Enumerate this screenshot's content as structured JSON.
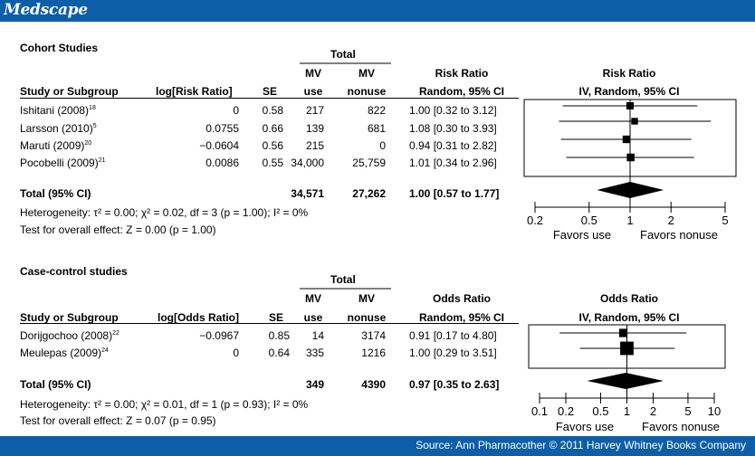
{
  "header": {
    "brand": "Medscape"
  },
  "footer": {
    "source": "Source: Ann Pharmacother © 2011 Harvey Whitney Books Company"
  },
  "chart_data": [
    {
      "type": "forest",
      "section_title": "Cohort Studies",
      "total_label": "Total",
      "columns": {
        "study": "Study or Subgroup",
        "logratio": "log[Risk Ratio]",
        "se": "SE",
        "use1": "MV",
        "use2": "use",
        "nonuse1": "MV",
        "nonuse2": "nonuse",
        "ratio1": "Risk Ratio",
        "ratio2": "Random, 95% CI",
        "plot1": "Risk Ratio",
        "plot2": "IV, Random, 95% CI"
      },
      "rows": [
        {
          "name": "Ishitani (2008)",
          "ref": "18",
          "logratio": "0",
          "se": "0.58",
          "use": "217",
          "nonuse": "822",
          "ci_text": "1.00 [0.32  to  3.12]",
          "est": 1.0,
          "low": 0.32,
          "high": 3.12,
          "weight": 0.22
        },
        {
          "name": "Larsson (2010)",
          "ref": "5",
          "logratio": "0.0755",
          "se": "0.66",
          "use": "139",
          "nonuse": "681",
          "ci_text": "1.08 [0.30  to  3.93]",
          "est": 1.08,
          "low": 0.3,
          "high": 3.93,
          "weight": 0.17
        },
        {
          "name": "Maruti (2009)",
          "ref": "20",
          "logratio": "−0.0604",
          "se": "0.56",
          "use": "215",
          "nonuse": "0",
          "ci_text": "0.94 [0.31  to  2.82]",
          "est": 0.94,
          "low": 0.31,
          "high": 2.82,
          "weight": 0.24
        },
        {
          "name": "Pocobelli (2009)",
          "ref": "21",
          "logratio": "0.0086",
          "se": "0.55",
          "use": "34,000",
          "nonuse": "25,759",
          "ci_text": "1.01 [0.34  to  2.96]",
          "est": 1.01,
          "low": 0.34,
          "high": 2.96,
          "weight": 0.25
        }
      ],
      "total": {
        "label": "Total (95% CI)",
        "use": "34,571",
        "nonuse": "27,262",
        "ci_text": "1.00 [0.57  to  1.77]",
        "est": 1.0,
        "low": 0.57,
        "high": 1.77
      },
      "heterogeneity": "Heterogeneity: τ² = 0.00; χ² = 0.02, df = 3 (p = 1.00); I² = 0%",
      "overall_effect": "Test for overall effect: Z = 0.00 (p = 1.00)",
      "axis": {
        "scale": "log",
        "min": 0.2,
        "max": 5,
        "ticks": [
          0.2,
          0.5,
          1,
          2,
          5
        ],
        "tick_labels": [
          "0.2",
          "0.5",
          "1",
          "2",
          "5"
        ],
        "favors_left": "Favors use",
        "favors_right": "Favors nonuse"
      }
    },
    {
      "type": "forest",
      "section_title": "Case-control studies",
      "total_label": "Total",
      "columns": {
        "study": "Study or Subgroup",
        "logratio": "log[Odds Ratio]",
        "se": "SE",
        "use1": "MV",
        "use2": "use",
        "nonuse1": "MV",
        "nonuse2": "nonuse",
        "ratio1": "Odds Ratio",
        "ratio2": "Random, 95% CI",
        "plot1": "Odds Ratio",
        "plot2": "IV, Random, 95% CI"
      },
      "rows": [
        {
          "name": "Dorijgochoo (2008)",
          "ref": "22",
          "logratio": "−0.0967",
          "se": "0.85",
          "use": "14",
          "nonuse": "3174",
          "ci_text": "0.91 [0.17  to  4.80]",
          "est": 0.91,
          "low": 0.17,
          "high": 4.8,
          "weight": 0.3
        },
        {
          "name": "Meulepas  (2009)",
          "ref": "24",
          "logratio": "0",
          "se": "0.64",
          "use": "335",
          "nonuse": "1216",
          "ci_text": "1.00 [0.29  to  3.51]",
          "est": 1.0,
          "low": 0.29,
          "high": 3.51,
          "weight": 0.7
        }
      ],
      "total": {
        "label": "Total (95% CI)",
        "use": "349",
        "nonuse": "4390",
        "ci_text": "0.97 [0.35  to  2.63]",
        "est": 0.97,
        "low": 0.35,
        "high": 2.63
      },
      "heterogeneity": "Heterogeneity: τ² = 0.00; χ² = 0.01, df = 1 (p = 0.93); I² = 0%",
      "overall_effect": "Test for overall effect: Z = 0.07 (p = 0.95)",
      "axis": {
        "scale": "log",
        "min": 0.1,
        "max": 10,
        "ticks": [
          0.1,
          0.2,
          0.5,
          1,
          2,
          5,
          10
        ],
        "tick_labels": [
          "0.1",
          "0.2",
          "0.5",
          "1",
          "2",
          "5",
          "10"
        ],
        "favors_left": "Favors use",
        "favors_right": "Favors nonuse"
      }
    }
  ]
}
